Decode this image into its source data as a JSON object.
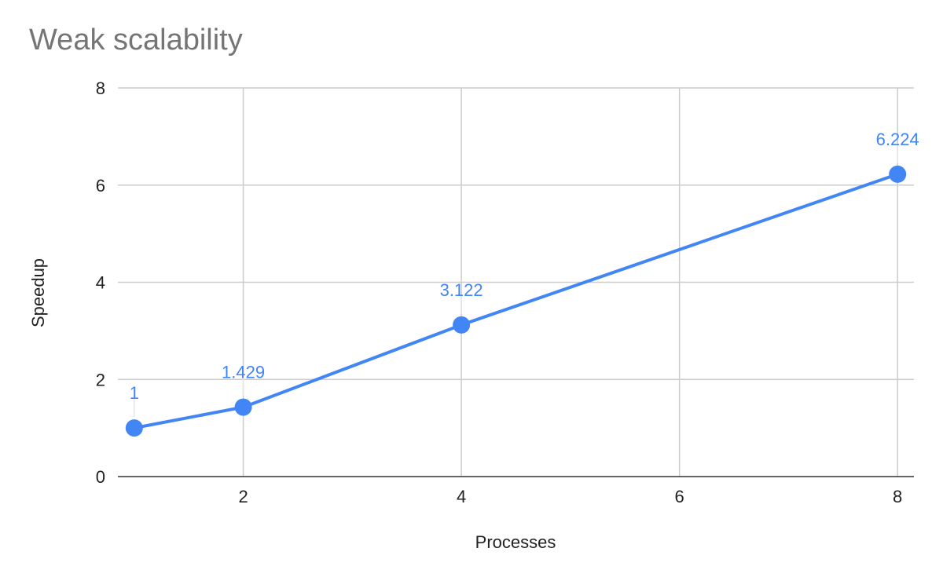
{
  "chart_data": {
    "type": "line",
    "title": "Weak scalability",
    "xlabel": "Processes",
    "ylabel": "Speedup",
    "x": [
      1,
      2,
      4,
      8
    ],
    "series": [
      {
        "values": [
          1,
          1.429,
          3.122,
          6.224
        ],
        "labels": [
          "1",
          "1.429",
          "3.122",
          "6.224"
        ]
      }
    ],
    "xlim": [
      0.85,
      8.15
    ],
    "ylim": [
      0,
      8
    ],
    "xticks": [
      2,
      4,
      6,
      8
    ],
    "yticks": [
      0,
      2,
      4,
      6,
      8
    ],
    "grid": true,
    "legend": "none",
    "color": "#4285f4"
  }
}
